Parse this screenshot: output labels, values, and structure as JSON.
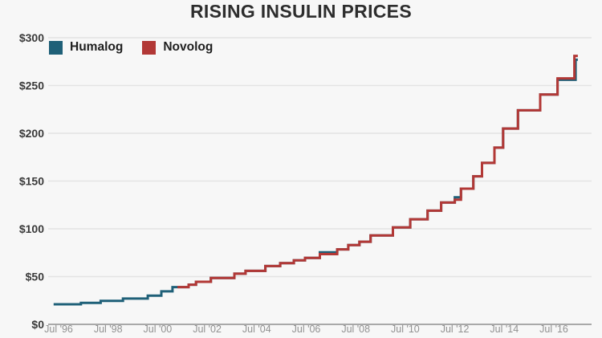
{
  "chart_data": {
    "type": "line",
    "subtype": "step",
    "title": "RISING INSULIN PRICES",
    "xlabel": "",
    "ylabel": "",
    "xlim": [
      1996.3,
      2017.47
    ],
    "ylim": [
      0,
      300
    ],
    "grid": "horizontal",
    "legend_position": "top-left",
    "x_ticks": [
      {
        "t": 1996.5,
        "label": "Jul '96"
      },
      {
        "t": 1998.5,
        "label": "Jul '98"
      },
      {
        "t": 2000.5,
        "label": "Jul '00"
      },
      {
        "t": 2002.5,
        "label": "Jul '02"
      },
      {
        "t": 2004.5,
        "label": "Jul '04"
      },
      {
        "t": 2006.5,
        "label": "Jul '06"
      },
      {
        "t": 2008.5,
        "label": "Jul '08"
      },
      {
        "t": 2010.5,
        "label": "Jul '10"
      },
      {
        "t": 2012.5,
        "label": "Jul '12"
      },
      {
        "t": 2014.5,
        "label": "Jul '14"
      },
      {
        "t": 2016.5,
        "label": "Jul '16"
      }
    ],
    "y_ticks": [
      {
        "v": 0,
        "label": "$0"
      },
      {
        "v": 50,
        "label": "$50"
      },
      {
        "v": 100,
        "label": "$100"
      },
      {
        "v": 150,
        "label": "$150"
      },
      {
        "v": 200,
        "label": "$200"
      },
      {
        "v": 250,
        "label": "$250"
      },
      {
        "v": 300,
        "label": "$300"
      }
    ],
    "series": [
      {
        "name": "Humalog",
        "color": "#1f6078",
        "points": [
          [
            1996.3,
            21
          ],
          [
            1997.4,
            22.5
          ],
          [
            1998.2,
            24.5
          ],
          [
            1999.1,
            27
          ],
          [
            2000.1,
            30
          ],
          [
            2000.65,
            34.5
          ],
          [
            2001.1,
            39
          ],
          [
            2001.75,
            41.5
          ],
          [
            2002.05,
            44.5
          ],
          [
            2002.65,
            48.5
          ],
          [
            2003.6,
            53
          ],
          [
            2004.05,
            56
          ],
          [
            2004.85,
            61
          ],
          [
            2005.45,
            64
          ],
          [
            2006.0,
            67
          ],
          [
            2006.45,
            69.5
          ],
          [
            2007.05,
            75.5
          ],
          [
            2007.75,
            78.5
          ],
          [
            2008.2,
            83
          ],
          [
            2008.65,
            86.5
          ],
          [
            2009.1,
            93
          ],
          [
            2010.0,
            101.5
          ],
          [
            2010.7,
            110
          ],
          [
            2011.4,
            119
          ],
          [
            2011.95,
            127.5
          ],
          [
            2012.5,
            133
          ],
          [
            2012.75,
            142
          ],
          [
            2013.25,
            155
          ],
          [
            2013.6,
            169
          ],
          [
            2014.1,
            185
          ],
          [
            2014.45,
            205
          ],
          [
            2015.05,
            224
          ],
          [
            2015.95,
            240.5
          ],
          [
            2016.65,
            256
          ],
          [
            2017.38,
            277
          ]
        ]
      },
      {
        "name": "Novolog",
        "color": "#b23836",
        "points": [
          [
            2001.3,
            39
          ],
          [
            2001.75,
            41.5
          ],
          [
            2002.05,
            44.5
          ],
          [
            2002.65,
            48.5
          ],
          [
            2003.6,
            53
          ],
          [
            2004.05,
            56
          ],
          [
            2004.85,
            61
          ],
          [
            2005.45,
            64
          ],
          [
            2006.0,
            67
          ],
          [
            2006.45,
            69.5
          ],
          [
            2007.05,
            73.5
          ],
          [
            2007.75,
            78.5
          ],
          [
            2008.2,
            83
          ],
          [
            2008.65,
            86.5
          ],
          [
            2009.1,
            93
          ],
          [
            2010.0,
            101.5
          ],
          [
            2010.7,
            110
          ],
          [
            2011.4,
            119
          ],
          [
            2011.95,
            127.5
          ],
          [
            2012.5,
            130.5
          ],
          [
            2012.75,
            142
          ],
          [
            2013.25,
            155
          ],
          [
            2013.6,
            169
          ],
          [
            2014.1,
            185
          ],
          [
            2014.45,
            205
          ],
          [
            2015.05,
            224
          ],
          [
            2015.95,
            240.5
          ],
          [
            2016.65,
            257.5
          ],
          [
            2017.33,
            281
          ]
        ]
      }
    ],
    "colors": {
      "background": "#f7f7f7",
      "title": "#2d2d2d",
      "gridline": "#e4e4e4",
      "axis_line": "#a9a9a9",
      "y_label": "#3a3a3a",
      "x_label": "#919191",
      "humalog": "#1f6078",
      "novolog": "#b23836"
    }
  }
}
